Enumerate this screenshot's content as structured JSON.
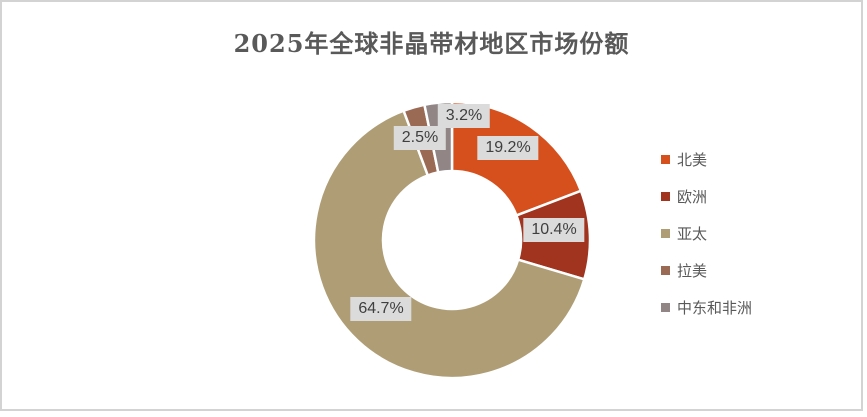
{
  "title": "2025年全球非晶带材地区市场份额",
  "chart_data": {
    "type": "pie",
    "subtype": "donut",
    "title": "2025年全球非晶带材地区市场份额",
    "categories": [
      "北美",
      "欧洲",
      "亚太",
      "拉美",
      "中东和非洲"
    ],
    "values": [
      19.2,
      10.4,
      64.7,
      2.5,
      3.2
    ],
    "data_labels": [
      "19.2%",
      "10.4%",
      "64.7%",
      "2.5%",
      "3.2%"
    ],
    "colors": [
      "#D6501E",
      "#A0341F",
      "#AF9D75",
      "#9B6A54",
      "#918586"
    ],
    "legend_position": "right",
    "start_angle_deg": 0,
    "clockwise": true,
    "donut_hole_ratio": 0.5,
    "slice_border_color": "#FFFFFF",
    "label_bg_color": "#DBDBDB",
    "label_text_color": "#3F3F3F",
    "title_color": "#595959",
    "legend_text_color": "#595959"
  }
}
